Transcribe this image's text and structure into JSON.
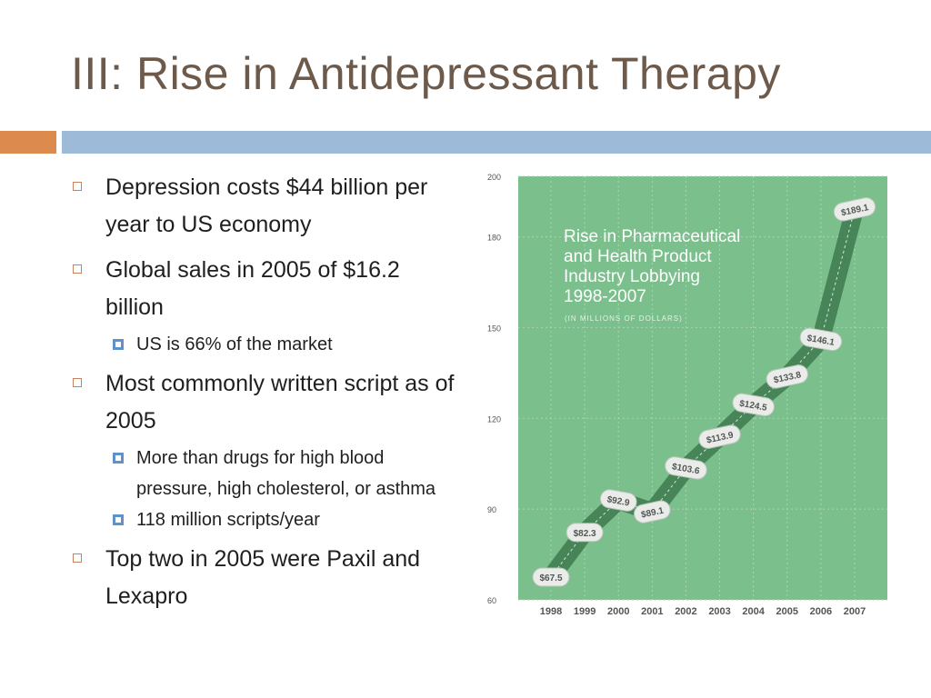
{
  "slide": {
    "title": "III: Rise in Antidepressant Therapy",
    "bullets": [
      {
        "text": "Depression costs $44 billion per year to US economy",
        "sub": []
      },
      {
        "text": "Global sales in 2005 of $16.2 billion",
        "sub": [
          "US is 66% of the market"
        ]
      },
      {
        "text": "Most commonly written script as of 2005",
        "sub": [
          "More than drugs for high blood pressure, high cholesterol, or asthma",
          "118 million scripts/year"
        ]
      },
      {
        "text": "Top two in 2005 were Paxil and Lexapro",
        "sub": []
      }
    ],
    "colors": {
      "title": "#6d5a4b",
      "accent_orange": "#dc8a4e",
      "accent_blue": "#9dbbd8",
      "chart_bg": "#7bbf8c",
      "chart_line": "#3e7a4f"
    }
  },
  "chart_data": {
    "type": "line",
    "title": "Rise in Pharmaceutical and Health Product Industry Lobbying 1998-2007",
    "subtitle": "(IN MILLIONS OF DOLLARS)",
    "title_lines": [
      "Rise in Pharmaceutical",
      "and Health Product",
      "Industry Lobbying",
      "1998-2007"
    ],
    "x": [
      "1998",
      "1999",
      "2000",
      "2001",
      "2002",
      "2003",
      "2004",
      "2005",
      "2006",
      "2007"
    ],
    "values": [
      67.5,
      82.3,
      92.9,
      89.1,
      103.6,
      113.9,
      124.5,
      133.8,
      146.1,
      189.1
    ],
    "labels": [
      "$67.5",
      "$82.3",
      "$92.9",
      "$89.1",
      "$103.6",
      "$113.9",
      "$124.5",
      "$133.8",
      "$146.1",
      "$189.1"
    ],
    "yticks": [
      60,
      90,
      120,
      150,
      180,
      200
    ],
    "ylim": [
      60,
      200
    ],
    "grid": true
  }
}
